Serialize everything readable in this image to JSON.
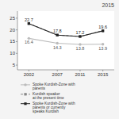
{
  "chart_data": {
    "type": "line",
    "title": "2015",
    "x": [
      2002,
      2007,
      2011,
      2015
    ],
    "series": [
      {
        "name": "Spoke Kurdish-Zone with\nparents",
        "color": "#bbbbbb",
        "line_style": "solid",
        "marker": "circle",
        "data_labels": true,
        "values": [
          16.4,
          14.3,
          13.8,
          13.9
        ]
      },
      {
        "name": "Kurdish speaker\nat the present time",
        "color": "#888888",
        "line_style": "dashed",
        "marker": "square",
        "data_labels": false,
        "values": [
          22.7,
          17.8,
          17.2,
          19.6
        ]
      },
      {
        "name": "Spoke Kurdish-Zone with\nparents or currently\nspeaks Kurdish",
        "color": "#222222",
        "line_style": "solid",
        "marker": "square",
        "data_labels": true,
        "values": [
          22.7,
          17.8,
          17.2,
          19.6
        ]
      }
    ],
    "xlim": [
      2000,
      2017
    ],
    "xticks": [
      2002,
      2007,
      2011,
      2015
    ],
    "ylim": [
      3,
      28
    ],
    "yticks": [
      5,
      10,
      15,
      20,
      25
    ],
    "grid": false,
    "legend": "bottom"
  }
}
